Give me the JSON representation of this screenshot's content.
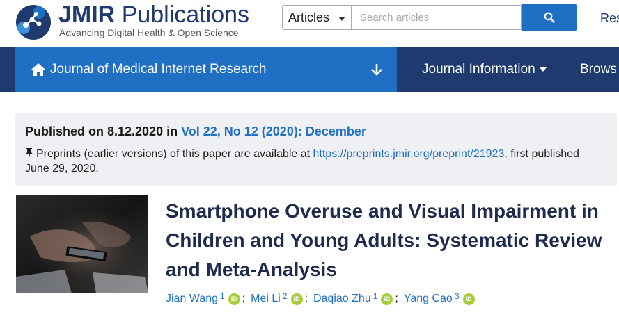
{
  "header": {
    "brand_bold": "JMIR",
    "brand_light": "Publications",
    "tagline": "Advancing Digital Health & Open Science",
    "search": {
      "category": "Articles",
      "placeholder": "Search articles"
    },
    "top_link": "Res"
  },
  "nav": {
    "journal": "Journal of Medical Internet Research",
    "items": [
      "Journal Information",
      "Brows"
    ]
  },
  "publication": {
    "published_prefix": "Published on 8.12.2020 in ",
    "issue_link": "Vol 22, No 12 (2020): December",
    "preprint_text": "Preprints (earlier versions) of this paper are available at ",
    "preprint_link": "https://preprints.jmir.org/preprint/21923",
    "preprint_suffix": ", first published June 29, 2020."
  },
  "article": {
    "title": "Smartphone Overuse and Visual Impairment in Children and Young Adults: Systematic Review and Meta-Analysis",
    "authors": [
      {
        "name": "Jian Wang",
        "aff": "1"
      },
      {
        "name": "Mei Li",
        "aff": "2"
      },
      {
        "name": "Daqiao Zhu",
        "aff": "1"
      },
      {
        "name": "Yang Cao",
        "aff": "3"
      }
    ],
    "orcid_label": "iD",
    "separator": ";"
  },
  "colors": {
    "navy": "#1e3a6e",
    "blue": "#1f6fc5",
    "orcid": "#a6ce39",
    "panel": "#eef0f3"
  },
  "icons": [
    "jmir-logo-icon",
    "caret-down-icon",
    "search-icon",
    "home-icon",
    "arrow-down-icon",
    "pushpin-icon",
    "orcid-icon"
  ]
}
